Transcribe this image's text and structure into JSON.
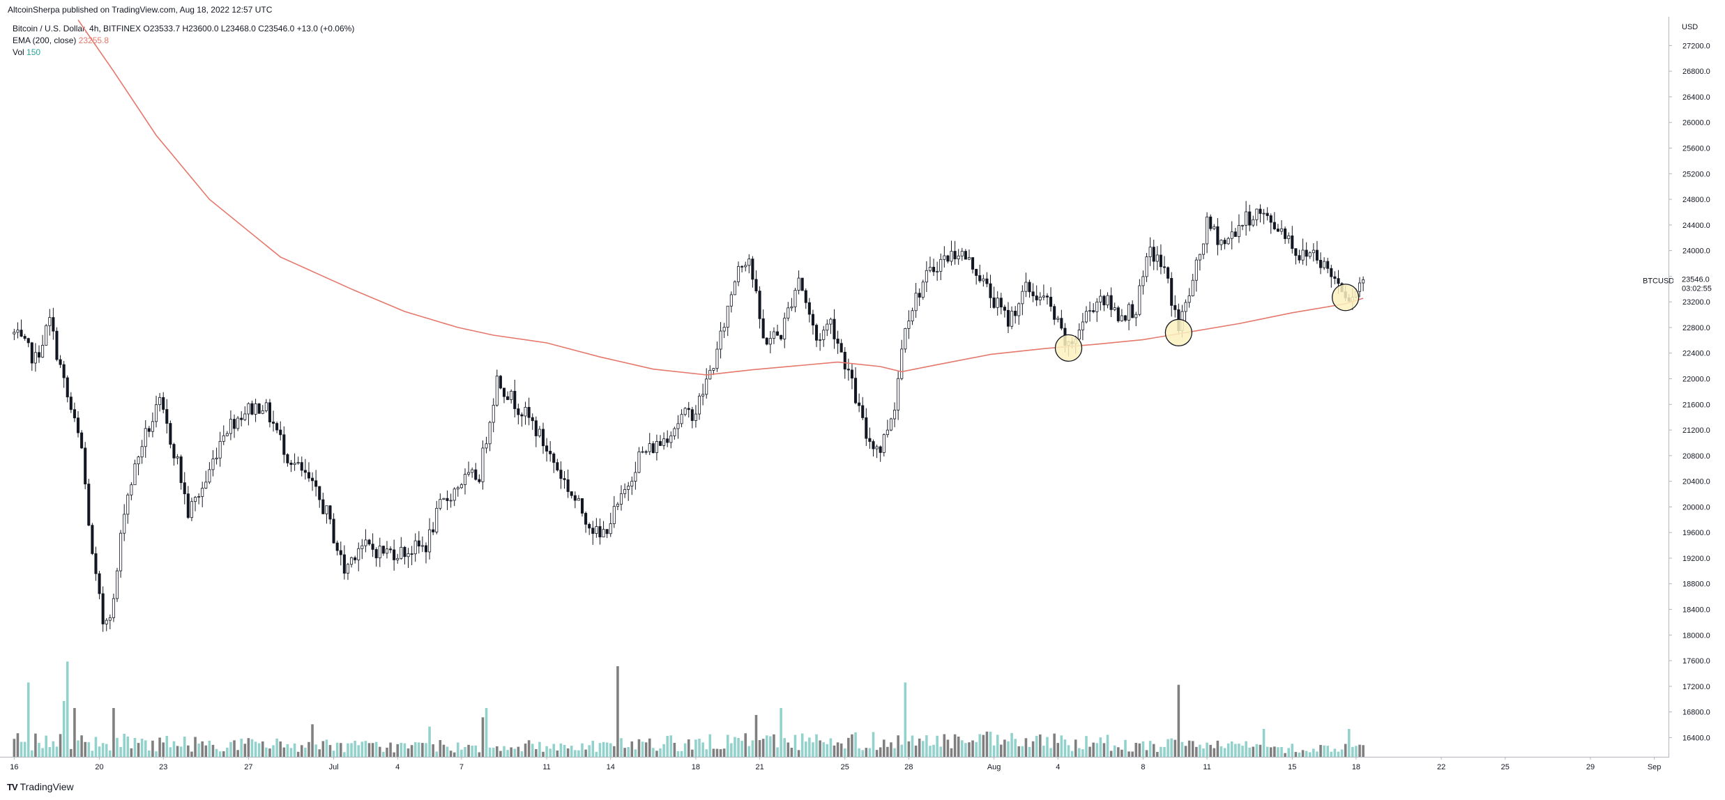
{
  "header": {
    "published": "AltcoinSherpa published on TradingView.com, Aug 18, 2022 12:57 UTC"
  },
  "legend": {
    "symbol_line": "Bitcoin / U.S. Dollar, 4h, BITFINEX",
    "ohlc": "O23533.7 H23600.0 L23468.0 C23546.0 +13.0 (+0.06%)",
    "ema_label": "EMA (200, close)",
    "ema_value": "23255.8",
    "vol_label": "Vol",
    "vol_value": "150"
  },
  "footer": {
    "brand": "TradingView",
    "logo_glyph": "TV"
  },
  "colors": {
    "ema": "#e5776b",
    "candle": "#131722",
    "vol_up": "#92d2cc",
    "vol_down": "#7f7f7f",
    "highlight_fill": "#fbf1bf",
    "grid_axis": "#b2b5be"
  },
  "chart_data": {
    "type": "candlestick",
    "symbol": "BTCUSD",
    "exchange": "BITFINEX",
    "interval": "4h",
    "y_axis": {
      "currency": "USD",
      "ticks": [
        27200,
        26800,
        26400,
        26000,
        25600,
        25200,
        24800,
        24400,
        24000,
        23600,
        23200,
        22800,
        22400,
        22000,
        21600,
        21200,
        20800,
        20400,
        20000,
        19600,
        19200,
        18800,
        18400,
        18000,
        17600,
        17200,
        16800,
        16400
      ],
      "tick_labels": [
        "27200.0",
        "26800.0",
        "26400.0",
        "26000.0",
        "25600.0",
        "25200.0",
        "24800.0",
        "24400.0",
        "24000.0",
        "23600.0",
        "23200.0",
        "22800.0",
        "22400.0",
        "22000.0",
        "21600.0",
        "21200.0",
        "20800.0",
        "20400.0",
        "20000.0",
        "19600.0",
        "19200.0",
        "18800.0",
        "18400.0",
        "18000.0",
        "17600.0",
        "17200.0",
        "16800.0",
        "16400.0"
      ],
      "range": [
        16100,
        27650
      ]
    },
    "x_axis": {
      "tick_labels": [
        "16",
        "20",
        "23",
        "27",
        "Jul",
        "4",
        "7",
        "11",
        "14",
        "18",
        "21",
        "25",
        "28",
        "Aug",
        "4",
        "8",
        "11",
        "15",
        "18",
        "22",
        "25",
        "29",
        "Sep"
      ],
      "tick_bar_index": [
        0,
        24,
        42,
        66,
        90,
        108,
        126,
        150,
        168,
        192,
        210,
        234,
        252,
        276,
        294,
        318,
        336,
        360,
        378,
        402,
        420,
        444,
        462
      ],
      "range_bars": [
        -4,
        466
      ]
    },
    "price_label": {
      "symbol": "BTCUSD",
      "price": "23546.0",
      "countdown": "03:02:55",
      "value": 23546.0
    },
    "ema": {
      "period": 200,
      "points": [
        [
          18,
          27600
        ],
        [
          28,
          26800
        ],
        [
          40,
          25800
        ],
        [
          55,
          24800
        ],
        [
          75,
          23900
        ],
        [
          95,
          23400
        ],
        [
          110,
          23050
        ],
        [
          125,
          22800
        ],
        [
          135,
          22680
        ],
        [
          150,
          22560
        ],
        [
          165,
          22340
        ],
        [
          180,
          22150
        ],
        [
          195,
          22060
        ],
        [
          208,
          22140
        ],
        [
          220,
          22200
        ],
        [
          232,
          22260
        ],
        [
          244,
          22190
        ],
        [
          250,
          22110
        ],
        [
          260,
          22220
        ],
        [
          275,
          22380
        ],
        [
          290,
          22470
        ],
        [
          305,
          22540
        ],
        [
          318,
          22610
        ],
        [
          330,
          22720
        ],
        [
          345,
          22860
        ],
        [
          360,
          23030
        ],
        [
          375,
          23170
        ],
        [
          380,
          23255.8
        ]
      ]
    },
    "highlight_markers": [
      {
        "bar": 297,
        "price": 22480
      },
      {
        "bar": 328,
        "price": 22720
      },
      {
        "bar": 375,
        "price": 23270
      }
    ],
    "anchors": [
      [
        0,
        22700
      ],
      [
        6,
        22300
      ],
      [
        10,
        22900
      ],
      [
        15,
        21700
      ],
      [
        19,
        20900
      ],
      [
        22,
        19200
      ],
      [
        25,
        18200
      ],
      [
        28,
        18500
      ],
      [
        31,
        20000
      ],
      [
        36,
        21000
      ],
      [
        41,
        21600
      ],
      [
        46,
        20700
      ],
      [
        49,
        19900
      ],
      [
        54,
        20400
      ],
      [
        59,
        21200
      ],
      [
        65,
        21500
      ],
      [
        70,
        21600
      ],
      [
        73,
        21300
      ],
      [
        77,
        20800
      ],
      [
        83,
        20400
      ],
      [
        88,
        19900
      ],
      [
        93,
        19000
      ],
      [
        97,
        19400
      ],
      [
        104,
        19300
      ],
      [
        110,
        19300
      ],
      [
        116,
        19400
      ],
      [
        120,
        20000
      ],
      [
        126,
        20400
      ],
      [
        131,
        20500
      ],
      [
        136,
        22000
      ],
      [
        140,
        21700
      ],
      [
        146,
        21300
      ],
      [
        152,
        20700
      ],
      [
        158,
        20100
      ],
      [
        165,
        19500
      ],
      [
        171,
        20100
      ],
      [
        176,
        20800
      ],
      [
        182,
        21000
      ],
      [
        188,
        21400
      ],
      [
        192,
        21500
      ],
      [
        198,
        22400
      ],
      [
        204,
        23800
      ],
      [
        207,
        23900
      ],
      [
        211,
        22600
      ],
      [
        216,
        22700
      ],
      [
        221,
        23600
      ],
      [
        226,
        22600
      ],
      [
        230,
        22900
      ],
      [
        235,
        22100
      ],
      [
        240,
        21100
      ],
      [
        244,
        20900
      ],
      [
        248,
        21600
      ],
      [
        251,
        22900
      ],
      [
        256,
        23500
      ],
      [
        260,
        23800
      ],
      [
        266,
        24000
      ],
      [
        271,
        23700
      ],
      [
        275,
        23300
      ],
      [
        280,
        22900
      ],
      [
        285,
        23400
      ],
      [
        291,
        23200
      ],
      [
        297,
        22450
      ],
      [
        302,
        23000
      ],
      [
        306,
        23300
      ],
      [
        311,
        23000
      ],
      [
        316,
        23100
      ],
      [
        320,
        24000
      ],
      [
        324,
        23700
      ],
      [
        328,
        22800
      ],
      [
        332,
        23500
      ],
      [
        336,
        24400
      ],
      [
        341,
        24100
      ],
      [
        345,
        24400
      ],
      [
        350,
        24600
      ],
      [
        355,
        24400
      ],
      [
        358,
        24300
      ],
      [
        362,
        23900
      ],
      [
        366,
        24000
      ],
      [
        370,
        23700
      ],
      [
        373,
        23500
      ],
      [
        376,
        23300
      ],
      [
        380,
        23546
      ]
    ],
    "volume": {
      "max": 2550,
      "anchors": [
        [
          0,
          400
        ],
        [
          30,
          350
        ],
        [
          60,
          300
        ],
        [
          100,
          250
        ],
        [
          150,
          250
        ],
        [
          200,
          350
        ],
        [
          250,
          400
        ],
        [
          300,
          350
        ],
        [
          340,
          250
        ],
        [
          380,
          200
        ]
      ],
      "spikes": [
        [
          4,
          1600
        ],
        [
          14,
          1200
        ],
        [
          15,
          2050
        ],
        [
          17,
          1050
        ],
        [
          28,
          1050
        ],
        [
          84,
          700
        ],
        [
          117,
          650
        ],
        [
          132,
          850
        ],
        [
          133,
          1050
        ],
        [
          170,
          1950
        ],
        [
          209,
          900
        ],
        [
          216,
          1050
        ],
        [
          251,
          1600
        ],
        [
          293,
          500
        ],
        [
          328,
          1550
        ],
        [
          352,
          600
        ],
        [
          376,
          600
        ]
      ]
    }
  }
}
